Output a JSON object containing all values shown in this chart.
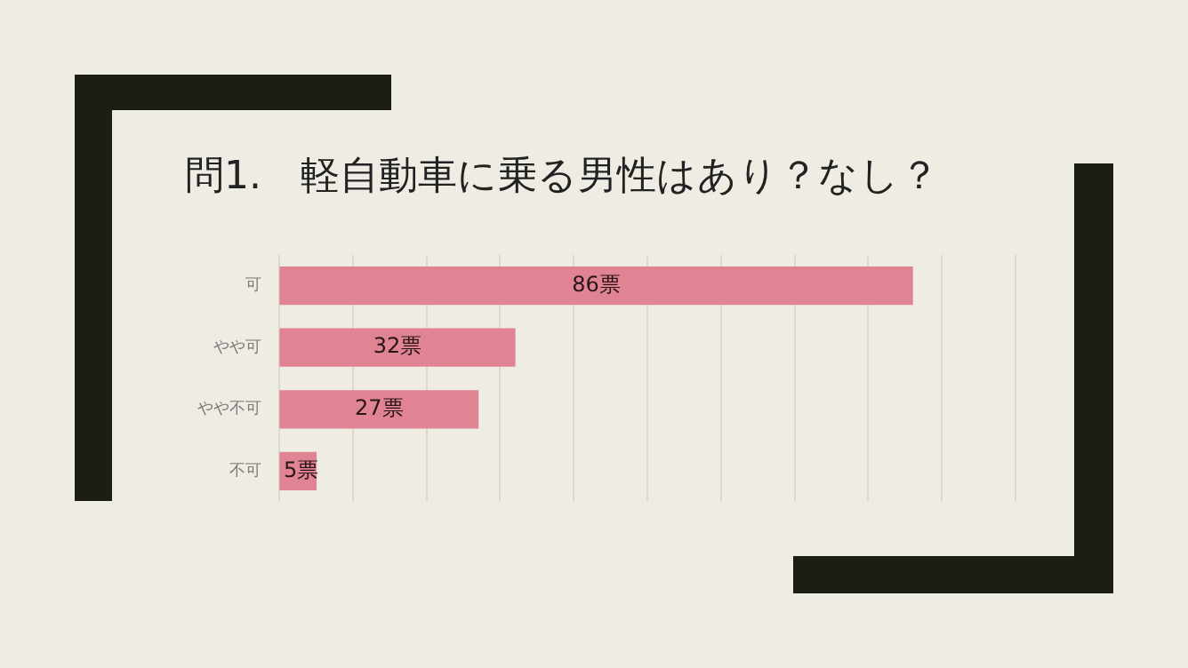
{
  "chart_data": {
    "type": "bar",
    "orientation": "horizontal",
    "title": "問1.　軽自動車に乗る男性はあり？なし？",
    "categories": [
      "可",
      "やや可",
      "やや不可",
      "不可"
    ],
    "values": [
      86,
      32,
      27,
      5
    ],
    "color": "#e08494",
    "value_labels": [
      "86票",
      "32票",
      "27票",
      "5票"
    ],
    "xlim": [
      0,
      100
    ],
    "xticks": [
      {
        "value": 0,
        "label": null
      },
      {
        "value": 10,
        "label": null
      },
      {
        "value": 20,
        "label": null
      },
      {
        "value": 30,
        "label": null
      },
      {
        "value": 40,
        "label": null
      },
      {
        "value": 50,
        "label": null
      },
      {
        "value": 60,
        "label": null
      },
      {
        "value": 70,
        "label": null
      },
      {
        "value": 80,
        "label": null
      },
      {
        "value": 90,
        "label": null
      },
      {
        "value": 100,
        "label": null
      }
    ],
    "grid": "x",
    "tick_labels": "y"
  }
}
